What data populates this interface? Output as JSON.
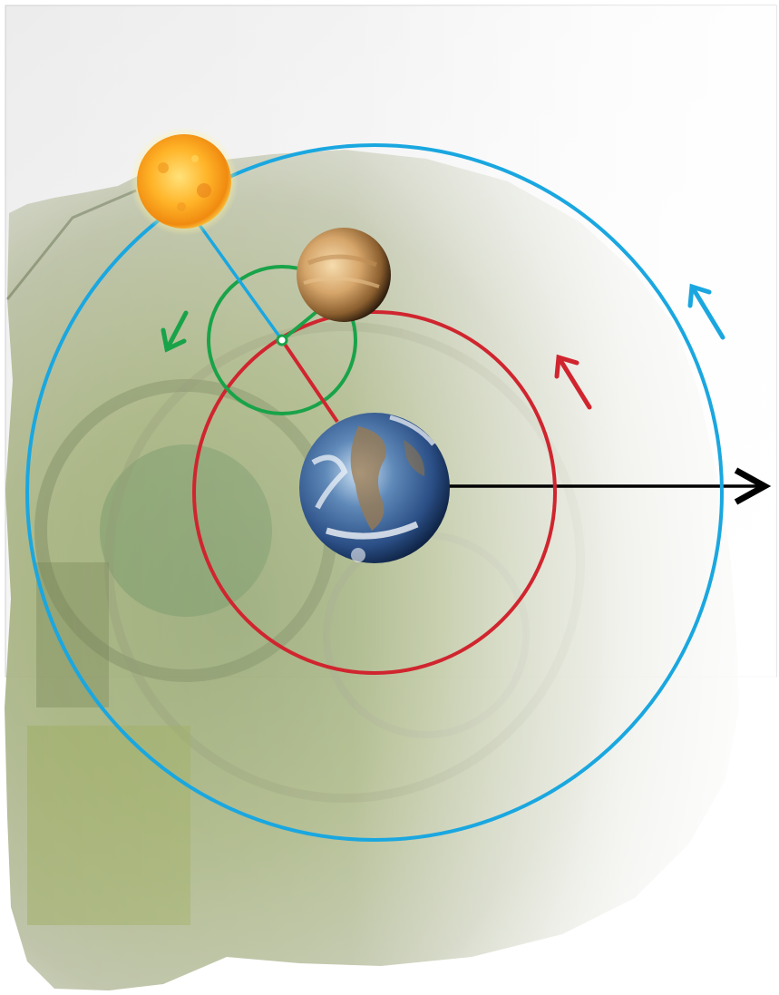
{
  "diagram": {
    "bodies": [
      {
        "name": "sun",
        "icon": "sun-icon"
      },
      {
        "name": "venus",
        "icon": "venus-icon"
      },
      {
        "name": "earth",
        "icon": "earth-icon"
      }
    ],
    "orbits": [
      {
        "name": "sun-orbit",
        "color": "#1aa7e0",
        "direction": "counterclockwise"
      },
      {
        "name": "venus-deferent",
        "color": "#d0252f",
        "direction": "counterclockwise"
      },
      {
        "name": "venus-epicycle",
        "color": "#19a349",
        "direction": "counterclockwise"
      }
    ],
    "reference_arrow": {
      "color": "#000000"
    },
    "background": "antikythera-mechanism-fragment"
  }
}
